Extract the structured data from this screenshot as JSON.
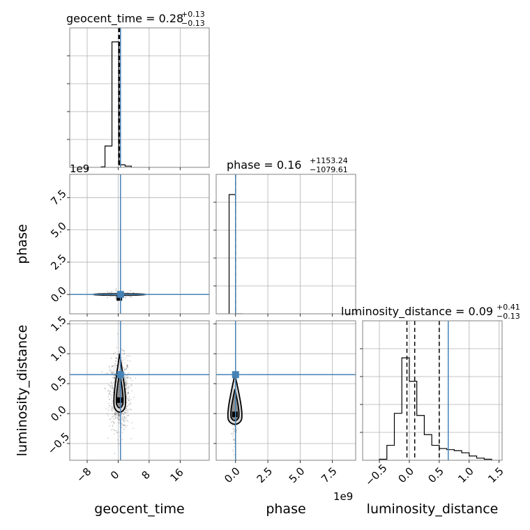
{
  "chart_data": {
    "type": "corner",
    "parameters": [
      "geocent_time",
      "phase",
      "luminosity_distance"
    ],
    "axis_labels": {
      "x": [
        "geocent_time",
        "phase",
        "luminosity_distance"
      ],
      "y": [
        "phase",
        "luminosity_distance"
      ]
    },
    "titles": [
      {
        "name": "geocent_time",
        "median": "0.28",
        "plus": "+0.13",
        "minus": "−0.13"
      },
      {
        "name": "phase",
        "median": "0.16",
        "plus": "+1153.24",
        "minus": "−1079.61"
      },
      {
        "name": "luminosity_distance",
        "median": "0.09",
        "plus": "+0.41",
        "minus": "−0.13"
      }
    ],
    "offset_text": {
      "phase_y": "1e9",
      "phase_x": "1e9"
    },
    "ranges": {
      "geocent_time": [
        -12.5,
        23.5
      ],
      "phase": [
        -1500000000.0,
        9300000000.0
      ],
      "luminosity_distance": [
        -0.78,
        1.55
      ]
    },
    "ticks": {
      "geocent_time": [
        -8,
        0,
        8,
        16
      ],
      "phase": [
        0.0,
        2500000000.0,
        5000000000.0,
        7500000000.0
      ],
      "luminosity_distance": [
        -0.5,
        0.0,
        0.5,
        1.0,
        1.5
      ]
    },
    "tick_labels": {
      "geocent_time": [
        "−8",
        "0",
        "8",
        "16"
      ],
      "phase": [
        "0.0",
        "2.5",
        "5.0",
        "7.5"
      ],
      "luminosity_distance": [
        "−0.5",
        "0.0",
        "0.5",
        "1.0",
        "1.5"
      ]
    },
    "truths": {
      "geocent_time": 0.6,
      "phase": 0.0,
      "luminosity_distance": 0.65
    },
    "quantiles": {
      "geocent_time": [
        0.15,
        0.28,
        0.41
      ],
      "phase": [
        -1080.0,
        0.16,
        1150.0
      ],
      "luminosity_distance": [
        -0.04,
        0.09,
        0.5
      ]
    },
    "histograms": {
      "geocent_time": {
        "edges": [
          -3.4,
          -1.6,
          0.2,
          1.8,
          3.4
        ],
        "counts": [
          0.17,
          1.0,
          0.02,
          0.01
        ],
        "extra_edges_low": [
          -4.5,
          -3.4
        ],
        "extra_counts_low": [
          0.005
        ]
      },
      "phase": {
        "edges": [
          -500000000.0,
          0.0,
          500000000.0
        ],
        "counts": [
          1.0,
          0.0
        ]
      },
      "luminosity_distance": {
        "edges": [
          -0.5,
          -0.375,
          -0.25,
          -0.125,
          0.0,
          0.125,
          0.25,
          0.375,
          0.5,
          0.625,
          0.75,
          0.875,
          1.0,
          1.125,
          1.25,
          1.375
        ],
        "counts": [
          0.01,
          0.14,
          0.44,
          0.96,
          0.74,
          0.42,
          0.24,
          0.14,
          0.11,
          0.1,
          0.09,
          0.07,
          0.04,
          0.02,
          0.01
        ]
      }
    },
    "grid": true,
    "color_truth": "#4682b4",
    "color_hist": "#000000"
  }
}
